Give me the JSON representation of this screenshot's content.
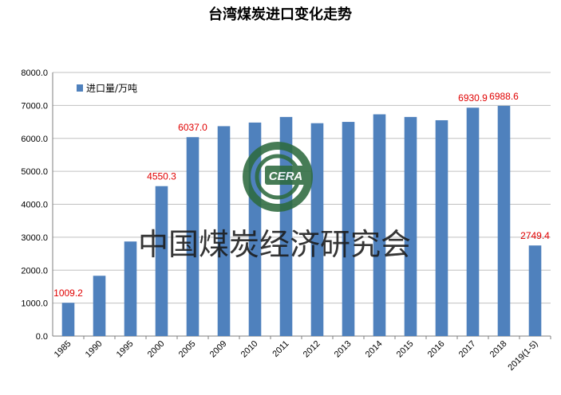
{
  "chart_data": {
    "type": "bar",
    "title": "台湾煤炭进口变化走势",
    "categories": [
      "1985",
      "1990",
      "1995",
      "2000",
      "2005",
      "2009",
      "2010",
      "2011",
      "2012",
      "2013",
      "2014",
      "2015",
      "2016",
      "2017",
      "2018",
      "2019(1-5)"
    ],
    "series": [
      {
        "name": "进口量/万吨",
        "values": [
          1009.2,
          1830,
          2870,
          4550.3,
          6037.0,
          6370,
          6480,
          6650,
          6460,
          6500,
          6730,
          6650,
          6550,
          6930.9,
          6988.6,
          2749.4
        ],
        "data_labels": [
          "1009.2",
          "",
          "",
          "4550.3",
          "6037.0",
          "",
          "",
          "",
          "",
          "",
          "",
          "",
          "",
          "6930.9",
          "6988.6",
          "2749.4"
        ]
      }
    ],
    "ylim": [
      0,
      8000
    ],
    "yticks": [
      "0.0",
      "1000.0",
      "2000.0",
      "3000.0",
      "4000.0",
      "5000.0",
      "6000.0",
      "7000.0",
      "8000.0"
    ],
    "grid": true,
    "legend": "top-left",
    "bar_color": "#4f81bd",
    "label_color": "#e00000"
  },
  "watermark": {
    "text": "中国煤炭经济研究会",
    "logo_text": "CERA",
    "logo_color": "#2e6b3f"
  }
}
